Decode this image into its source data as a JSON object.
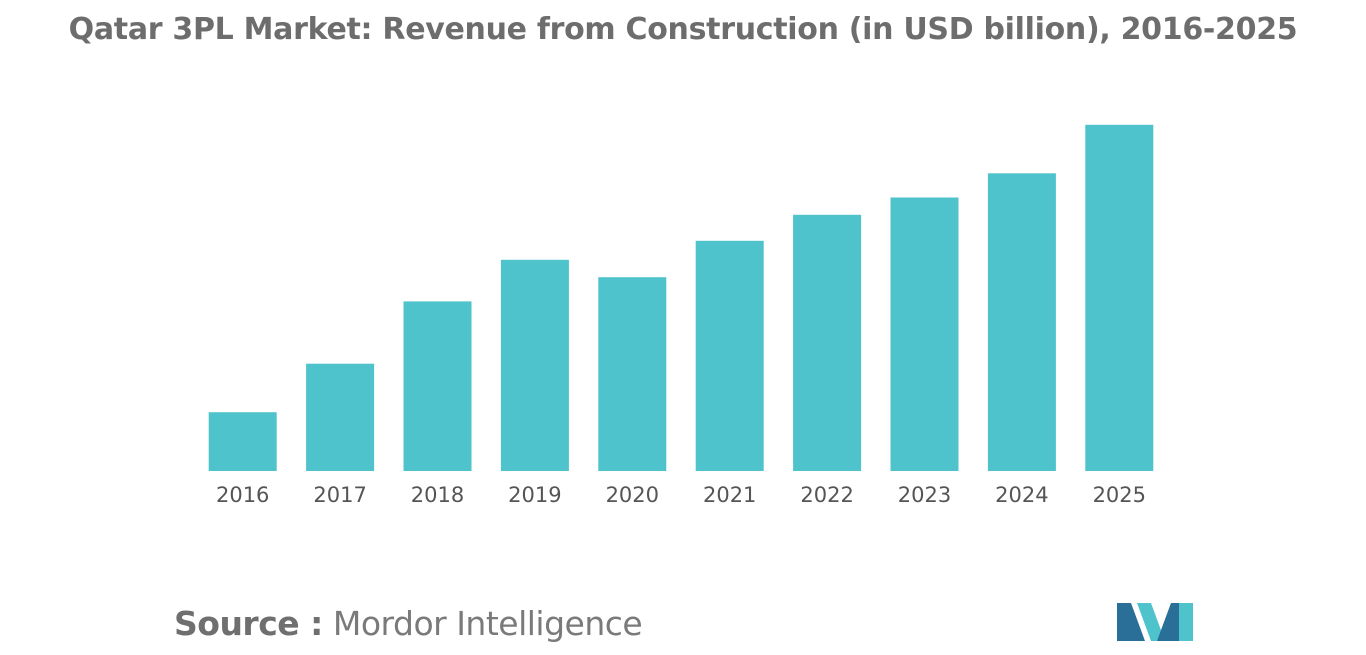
{
  "title": "Qatar 3PL Market: Revenue from Construction (in USD billion), 2016-2025",
  "source": {
    "label": "Source :",
    "text": "Mordor Intelligence"
  },
  "logo_icon": "mordor-intelligence-logo",
  "colors": {
    "bar": "#4fc3cb",
    "title": "#6d6d6d",
    "tick_text": "#555555",
    "logo_dark": "#2a6f97",
    "logo_light": "#4fc3cb"
  },
  "chart_data": {
    "type": "bar",
    "title": "Qatar 3PL Market: Revenue from Construction (in USD billion), 2016-2025",
    "xlabel": "",
    "ylabel": "",
    "categories": [
      "2016",
      "2017",
      "2018",
      "2019",
      "2020",
      "2021",
      "2022",
      "2023",
      "2024",
      "2025"
    ],
    "values": [
      1.7,
      3.1,
      4.9,
      6.1,
      5.6,
      6.65,
      7.4,
      7.9,
      8.6,
      10.0
    ],
    "ylim": [
      0,
      10.4
    ],
    "grid": false,
    "legend": "none"
  }
}
